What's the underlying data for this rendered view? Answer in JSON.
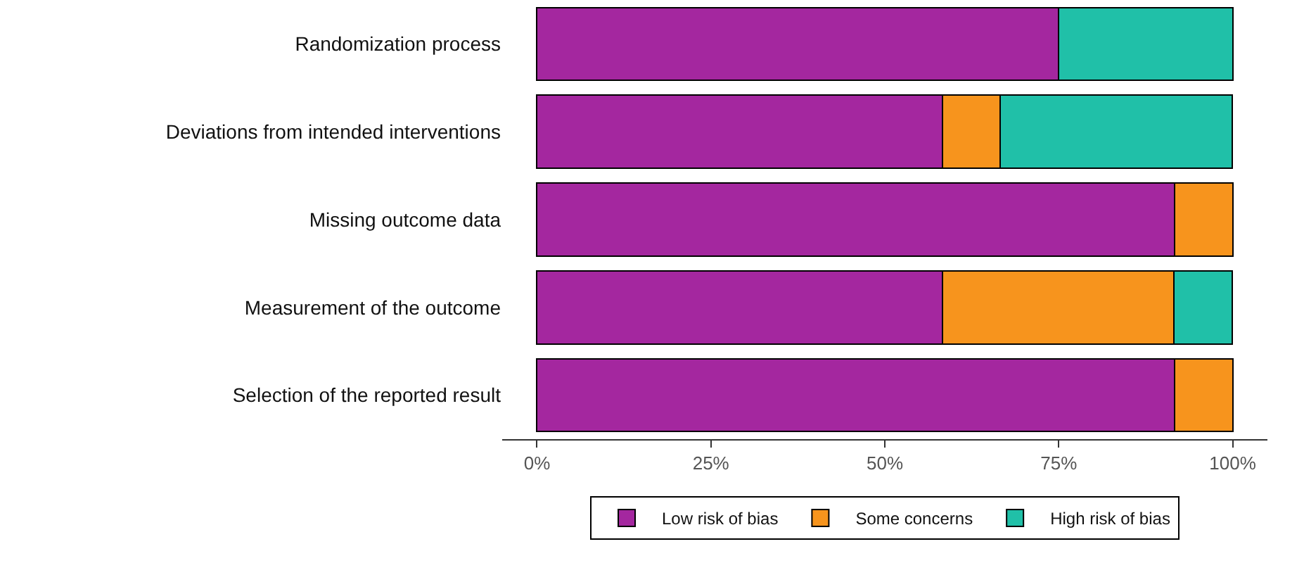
{
  "chart_data": {
    "type": "bar",
    "orientation": "horizontal",
    "stacked": true,
    "categories": [
      "Randomization process",
      "Deviations from intended interventions",
      "Missing outcome data",
      "Measurement of the outcome",
      "Selection of the reported result"
    ],
    "series": [
      {
        "name": "Low risk of bias",
        "color": "#a4279f",
        "values": [
          75,
          58.3,
          91.7,
          58.3,
          91.7
        ]
      },
      {
        "name": "Some concerns",
        "color": "#f7941d",
        "values": [
          null,
          8.3,
          8.3,
          33.3,
          8.3
        ]
      },
      {
        "name": "High risk of bias",
        "color": "#20c0a8",
        "values": [
          25,
          33.3,
          null,
          8.3,
          null
        ]
      }
    ],
    "xlim": [
      -5,
      105
    ],
    "xticks": [
      {
        "value": 0,
        "label": "0%"
      },
      {
        "value": 25,
        "label": "25%"
      },
      {
        "value": 50,
        "label": "50%"
      },
      {
        "value": 75,
        "label": "75%"
      },
      {
        "value": 100,
        "label": "100%"
      }
    ],
    "grid": false,
    "legend": "bottom"
  }
}
